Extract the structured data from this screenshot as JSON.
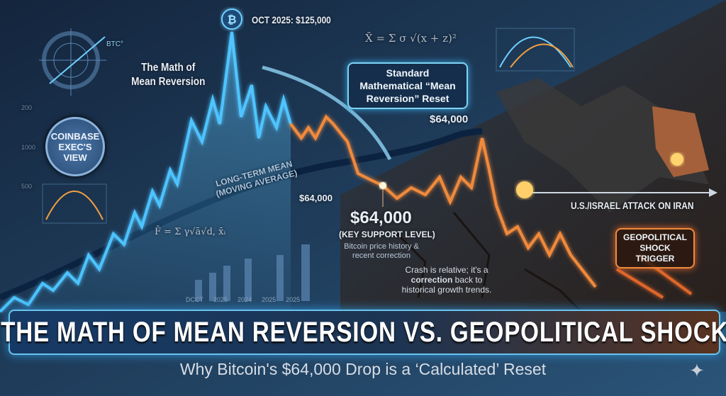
{
  "colors": {
    "bull_line": "#4cc3ff",
    "bear_line": "#f08a3c",
    "mean_line": "#0b2340",
    "background_left": "#1a3350",
    "background_right": "#2c2622"
  },
  "icons": {
    "peak": "bitcoin-icon",
    "corner": "sparkle-icon"
  },
  "peak_label": "OCT 2025: $125,000",
  "left_heading": "The Math of Mean Reversion",
  "btc_gauge_label": "BTC°",
  "formula_top": "X̄ = Σ σ √(x + z)²",
  "formula_bottom": "F̄ = Σ γ√ā√d, x̄ᵢ",
  "axis_ticks": [
    "200",
    "1000",
    "500"
  ],
  "badge": "COINBASE EXEC'S VIEW",
  "reset_callout": "Standard Mathematical “Mean Reversion” Reset",
  "mean_price_label": "$64,000",
  "long_term_mean": "LONG-TERM MEAN (MOVING AVERAGE)",
  "mean_mid_label": "$64,000",
  "support_price": "$64,000",
  "support_label": "(KEY SUPPORT LEVEL)",
  "support_note": "Bitcoin price history & recent correction",
  "crash_note_pre": "Crash is relative; it's a ",
  "crash_note_bold": "correction",
  "crash_note_post": " back to historical growth trends.",
  "mini_chart_labels": [
    "DCCT",
    "2025",
    "2024",
    "2025",
    "2025"
  ],
  "event_label": "U.S./ISRAEL ATTACK ON IRAN",
  "shock_callout": "GEOPOLITICAL SHOCK TRIGGER",
  "title": "THE MATH OF MEAN REVERSION VS. GEOPOLITICAL SHOCK",
  "subtitle": "Why Bitcoin's $64,000 Drop is a ‘Calculated’ Reset"
}
